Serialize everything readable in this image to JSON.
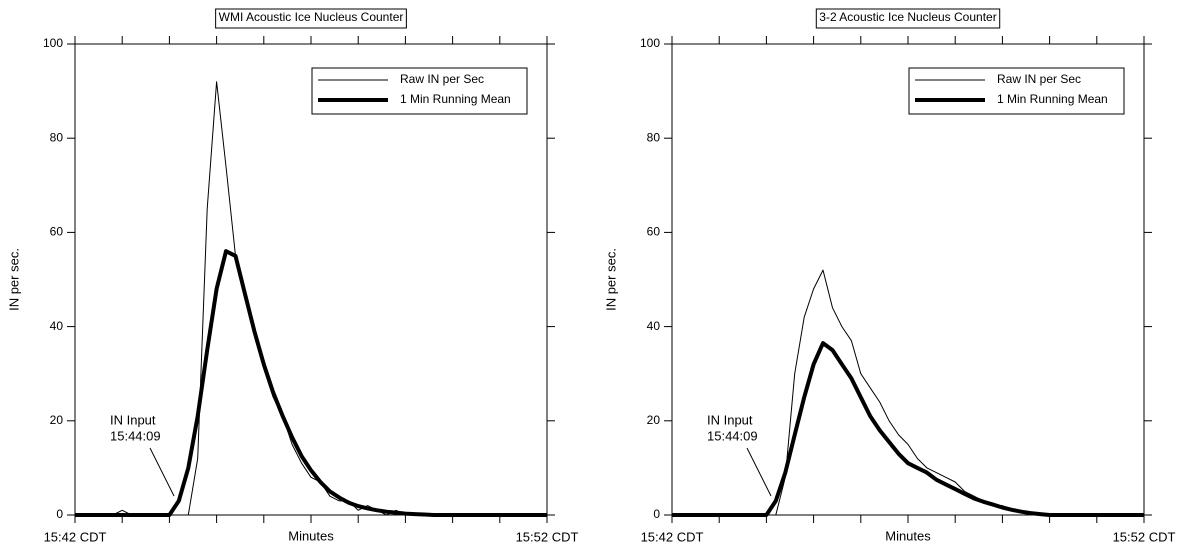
{
  "chart_data": [
    {
      "type": "line",
      "title": "WMI Acoustic Ice Nucleus Counter",
      "xlabel": "Minutes",
      "ylabel": "IN per sec.",
      "x": [
        0,
        0.2,
        0.4,
        0.6,
        0.8,
        1,
        1.2,
        1.4,
        1.6,
        1.8,
        2,
        2.2,
        2.4,
        2.6,
        2.8,
        3,
        3.2,
        3.4,
        3.6,
        3.8,
        4,
        4.2,
        4.4,
        4.6,
        4.8,
        5,
        5.2,
        5.4,
        5.6,
        5.8,
        6,
        6.2,
        6.4,
        6.6,
        6.8,
        7,
        7.2,
        7.4,
        7.6,
        7.8,
        8,
        8.2,
        8.4,
        8.6,
        8.8,
        9,
        9.2,
        9.4,
        9.6,
        9.8,
        10
      ],
      "series": [
        {
          "name": "Raw IN per Sec",
          "color": "#000000",
          "width": 1,
          "values": [
            0,
            0,
            0,
            0,
            0,
            1,
            0,
            0,
            0,
            0,
            0,
            0,
            0,
            12,
            65,
            92,
            74,
            55,
            46,
            38,
            31,
            25,
            21,
            15,
            11,
            8,
            7,
            4,
            3,
            3,
            1,
            2,
            1,
            0,
            1,
            0,
            0,
            0,
            0,
            0,
            0,
            0,
            0,
            0,
            0,
            0,
            0,
            0,
            0,
            0,
            0
          ]
        },
        {
          "name": "1 Min Running Mean",
          "color": "#000000",
          "width": 4,
          "values": [
            0,
            0,
            0,
            0,
            0,
            0,
            0,
            0,
            0,
            0,
            0,
            3,
            10,
            21,
            35,
            48,
            56,
            55,
            47,
            39,
            32,
            26,
            21,
            16.5,
            12.5,
            9.5,
            7,
            5,
            3.7,
            2.6,
            1.9,
            1.4,
            1,
            0.7,
            0.5,
            0.3,
            0.2,
            0.1,
            0,
            0,
            0,
            0,
            0,
            0,
            0,
            0,
            0,
            0,
            0,
            0,
            0
          ]
        }
      ],
      "annotation": [
        "IN Input",
        "15:44:09"
      ],
      "xlim": [
        0,
        10
      ],
      "xticks": [
        {
          "value": 0,
          "label": "15:42 CDT"
        },
        {
          "value": 10,
          "label": "15:52 CDT"
        }
      ],
      "xticks_minor": [
        1,
        2,
        3,
        4,
        5,
        6,
        7,
        8,
        9
      ],
      "ylim": [
        0,
        100
      ],
      "yticks": [
        0,
        20,
        40,
        60,
        80,
        100
      ],
      "legend": "upper right"
    },
    {
      "type": "line",
      "title": "3-2 Acoustic Ice Nucleus Counter",
      "xlabel": "Minutes",
      "ylabel": "IN per sec.",
      "x": [
        0,
        0.2,
        0.4,
        0.6,
        0.8,
        1,
        1.2,
        1.4,
        1.6,
        1.8,
        2,
        2.2,
        2.4,
        2.6,
        2.8,
        3,
        3.2,
        3.4,
        3.6,
        3.8,
        4,
        4.2,
        4.4,
        4.6,
        4.8,
        5,
        5.2,
        5.4,
        5.6,
        5.8,
        6,
        6.2,
        6.4,
        6.6,
        6.8,
        7,
        7.2,
        7.4,
        7.6,
        7.8,
        8,
        8.2,
        8.4,
        8.6,
        8.8,
        9,
        9.2,
        9.4,
        9.6,
        9.8,
        10
      ],
      "series": [
        {
          "name": "Raw IN per Sec",
          "color": "#000000",
          "width": 1,
          "values": [
            0,
            0,
            0,
            0,
            0,
            0,
            0,
            0,
            0,
            0,
            0,
            0,
            8,
            30,
            42,
            48,
            52,
            44,
            40,
            37,
            30,
            27,
            24,
            20,
            17,
            15,
            12,
            10,
            9,
            8,
            7,
            5,
            4,
            3,
            2,
            2,
            1,
            1,
            0,
            0,
            0,
            0,
            0,
            0,
            0,
            0,
            0,
            0,
            0,
            0,
            0
          ]
        },
        {
          "name": "1 Min Running Mean",
          "color": "#000000",
          "width": 4,
          "values": [
            0,
            0,
            0,
            0,
            0,
            0,
            0,
            0,
            0,
            0,
            0,
            3,
            9,
            17,
            25,
            32,
            36.5,
            35,
            32,
            29,
            25,
            21,
            18,
            15.5,
            13,
            11,
            10,
            9,
            7.5,
            6.5,
            5.5,
            4.5,
            3.5,
            2.8,
            2.2,
            1.6,
            1.1,
            0.7,
            0.4,
            0.2,
            0,
            0,
            0,
            0,
            0,
            0,
            0,
            0,
            0,
            0,
            0
          ]
        }
      ],
      "annotation": [
        "IN Input",
        "15:44:09"
      ],
      "xlim": [
        0,
        10
      ],
      "xticks": [
        {
          "value": 0,
          "label": "15:42 CDT"
        },
        {
          "value": 10,
          "label": "15:52 CDT"
        }
      ],
      "xticks_minor": [
        1,
        2,
        3,
        4,
        5,
        6,
        7,
        8,
        9
      ],
      "ylim": [
        0,
        100
      ],
      "yticks": [
        0,
        20,
        40,
        60,
        80,
        100
      ],
      "legend": "upper right"
    }
  ]
}
